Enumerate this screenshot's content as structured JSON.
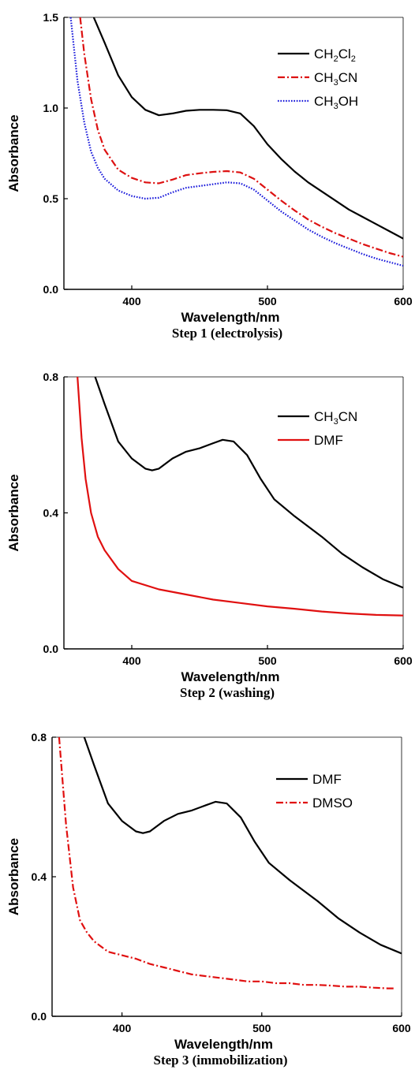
{
  "chart_data": [
    {
      "type": "line",
      "caption": "Step 1 (electrolysis)",
      "xlabel": "Wavelength/nm",
      "ylabel": "Absorbance",
      "xlim": [
        350,
        600
      ],
      "ylim": [
        0,
        1.5
      ],
      "xticks": [
        "400",
        "500",
        "600"
      ],
      "yticks": [
        "0.0",
        "0.5",
        "1.0",
        "1.5"
      ],
      "legend_position": "top-right",
      "series": [
        {
          "name": "CH2Cl2",
          "label_parts": [
            {
              "t": "CH"
            },
            {
              "t": "2",
              "sub": true
            },
            {
              "t": "Cl"
            },
            {
              "t": "2",
              "sub": true
            }
          ],
          "color": "#000000",
          "dash": "solid",
          "points": [
            [
              372,
              1.5
            ],
            [
              380,
              1.36
            ],
            [
              390,
              1.18
            ],
            [
              400,
              1.06
            ],
            [
              410,
              0.99
            ],
            [
              420,
              0.96
            ],
            [
              430,
              0.97
            ],
            [
              440,
              0.985
            ],
            [
              450,
              0.99
            ],
            [
              460,
              0.99
            ],
            [
              470,
              0.988
            ],
            [
              480,
              0.97
            ],
            [
              490,
              0.9
            ],
            [
              500,
              0.8
            ],
            [
              510,
              0.72
            ],
            [
              520,
              0.65
            ],
            [
              530,
              0.59
            ],
            [
              540,
              0.54
            ],
            [
              550,
              0.49
            ],
            [
              560,
              0.44
            ],
            [
              570,
              0.4
            ],
            [
              580,
              0.36
            ],
            [
              590,
              0.32
            ],
            [
              600,
              0.28
            ]
          ]
        },
        {
          "name": "CH3CN",
          "label_parts": [
            {
              "t": "CH"
            },
            {
              "t": "3",
              "sub": true
            },
            {
              "t": "CN"
            }
          ],
          "color": "#dd1111",
          "dash": "dashdot",
          "points": [
            [
              362,
              1.5
            ],
            [
              365,
              1.3
            ],
            [
              370,
              1.05
            ],
            [
              375,
              0.88
            ],
            [
              380,
              0.77
            ],
            [
              390,
              0.66
            ],
            [
              400,
              0.615
            ],
            [
              410,
              0.59
            ],
            [
              420,
              0.585
            ],
            [
              430,
              0.605
            ],
            [
              440,
              0.63
            ],
            [
              450,
              0.64
            ],
            [
              460,
              0.648
            ],
            [
              470,
              0.652
            ],
            [
              480,
              0.645
            ],
            [
              490,
              0.61
            ],
            [
              500,
              0.55
            ],
            [
              510,
              0.49
            ],
            [
              520,
              0.435
            ],
            [
              530,
              0.385
            ],
            [
              540,
              0.345
            ],
            [
              550,
              0.31
            ],
            [
              560,
              0.28
            ],
            [
              570,
              0.25
            ],
            [
              580,
              0.225
            ],
            [
              590,
              0.2
            ],
            [
              600,
              0.18
            ]
          ]
        },
        {
          "name": "CH3OH",
          "label_parts": [
            {
              "t": "CH"
            },
            {
              "t": "3",
              "sub": true
            },
            {
              "t": "OH"
            }
          ],
          "color": "#1a1adb",
          "dash": "dotted",
          "points": [
            [
              355,
              1.5
            ],
            [
              360,
              1.15
            ],
            [
              365,
              0.92
            ],
            [
              370,
              0.76
            ],
            [
              375,
              0.67
            ],
            [
              380,
              0.61
            ],
            [
              390,
              0.545
            ],
            [
              400,
              0.515
            ],
            [
              410,
              0.5
            ],
            [
              420,
              0.505
            ],
            [
              430,
              0.535
            ],
            [
              440,
              0.56
            ],
            [
              450,
              0.57
            ],
            [
              460,
              0.58
            ],
            [
              470,
              0.59
            ],
            [
              480,
              0.585
            ],
            [
              490,
              0.55
            ],
            [
              500,
              0.49
            ],
            [
              510,
              0.43
            ],
            [
              520,
              0.38
            ],
            [
              530,
              0.33
            ],
            [
              540,
              0.29
            ],
            [
              550,
              0.255
            ],
            [
              560,
              0.225
            ],
            [
              570,
              0.195
            ],
            [
              580,
              0.17
            ],
            [
              590,
              0.15
            ],
            [
              600,
              0.13
            ]
          ]
        }
      ]
    },
    {
      "type": "line",
      "caption": "Step 2 (washing)",
      "xlabel": "Wavelength/nm",
      "ylabel": "Absorbance",
      "xlim": [
        350,
        600
      ],
      "ylim": [
        0,
        0.8
      ],
      "xticks": [
        "400",
        "500",
        "600"
      ],
      "yticks": [
        "0.0",
        "0.4",
        "0.8"
      ],
      "legend_position": "top-right",
      "series": [
        {
          "name": "CH3CN",
          "label_parts": [
            {
              "t": "CH"
            },
            {
              "t": "3",
              "sub": true
            },
            {
              "t": "CN"
            }
          ],
          "color": "#000000",
          "dash": "solid",
          "points": [
            [
              373,
              0.8
            ],
            [
              380,
              0.72
            ],
            [
              390,
              0.61
            ],
            [
              400,
              0.56
            ],
            [
              410,
              0.53
            ],
            [
              415,
              0.525
            ],
            [
              420,
              0.53
            ],
            [
              430,
              0.56
            ],
            [
              440,
              0.58
            ],
            [
              450,
              0.59
            ],
            [
              460,
              0.605
            ],
            [
              467,
              0.615
            ],
            [
              475,
              0.61
            ],
            [
              485,
              0.57
            ],
            [
              495,
              0.5
            ],
            [
              505,
              0.44
            ],
            [
              520,
              0.39
            ],
            [
              540,
              0.33
            ],
            [
              555,
              0.28
            ],
            [
              570,
              0.24
            ],
            [
              585,
              0.205
            ],
            [
              600,
              0.18
            ]
          ]
        },
        {
          "name": "DMF",
          "label_parts": [
            {
              "t": "DMF"
            }
          ],
          "color": "#e01010",
          "dash": "solid",
          "points": [
            [
              360,
              0.8
            ],
            [
              363,
              0.62
            ],
            [
              366,
              0.5
            ],
            [
              370,
              0.4
            ],
            [
              375,
              0.33
            ],
            [
              380,
              0.29
            ],
            [
              390,
              0.235
            ],
            [
              400,
              0.2
            ],
            [
              420,
              0.175
            ],
            [
              440,
              0.16
            ],
            [
              460,
              0.145
            ],
            [
              480,
              0.135
            ],
            [
              500,
              0.125
            ],
            [
              520,
              0.118
            ],
            [
              540,
              0.11
            ],
            [
              560,
              0.104
            ],
            [
              580,
              0.1
            ],
            [
              600,
              0.098
            ]
          ]
        }
      ]
    },
    {
      "type": "line",
      "caption": "Step 3 (immobilization)",
      "xlabel": "Wavelength/nm",
      "ylabel": "Absorbance",
      "xlim": [
        350,
        600
      ],
      "ylim": [
        0,
        0.8
      ],
      "xticks": [
        "400",
        "500",
        "600"
      ],
      "yticks": [
        "0.0",
        "0.4",
        "0.8"
      ],
      "legend_position": "top-right",
      "series": [
        {
          "name": "DMF",
          "label_parts": [
            {
              "t": "DMF"
            }
          ],
          "color": "#000000",
          "dash": "solid",
          "points": [
            [
              373,
              0.8
            ],
            [
              380,
              0.72
            ],
            [
              390,
              0.61
            ],
            [
              400,
              0.56
            ],
            [
              410,
              0.53
            ],
            [
              415,
              0.525
            ],
            [
              420,
              0.53
            ],
            [
              430,
              0.56
            ],
            [
              440,
              0.58
            ],
            [
              450,
              0.59
            ],
            [
              460,
              0.605
            ],
            [
              467,
              0.615
            ],
            [
              475,
              0.61
            ],
            [
              485,
              0.57
            ],
            [
              495,
              0.5
            ],
            [
              505,
              0.44
            ],
            [
              520,
              0.39
            ],
            [
              540,
              0.33
            ],
            [
              555,
              0.28
            ],
            [
              570,
              0.24
            ],
            [
              585,
              0.205
            ],
            [
              600,
              0.18
            ]
          ]
        },
        {
          "name": "DMSO",
          "label_parts": [
            {
              "t": "DMSO"
            }
          ],
          "color": "#e01010",
          "dash": "dashdot",
          "points": [
            [
              355,
              0.8
            ],
            [
              360,
              0.55
            ],
            [
              365,
              0.37
            ],
            [
              370,
              0.275
            ],
            [
              375,
              0.24
            ],
            [
              380,
              0.215
            ],
            [
              390,
              0.185
            ],
            [
              400,
              0.175
            ],
            [
              410,
              0.165
            ],
            [
              420,
              0.15
            ],
            [
              430,
              0.14
            ],
            [
              440,
              0.13
            ],
            [
              450,
              0.12
            ],
            [
              460,
              0.115
            ],
            [
              470,
              0.11
            ],
            [
              480,
              0.105
            ],
            [
              490,
              0.1
            ],
            [
              500,
              0.1
            ],
            [
              510,
              0.095
            ],
            [
              520,
              0.095
            ],
            [
              530,
              0.09
            ],
            [
              540,
              0.09
            ],
            [
              550,
              0.088
            ],
            [
              560,
              0.085
            ],
            [
              570,
              0.085
            ],
            [
              580,
              0.082
            ],
            [
              590,
              0.08
            ],
            [
              595,
              0.08
            ]
          ]
        }
      ]
    }
  ]
}
